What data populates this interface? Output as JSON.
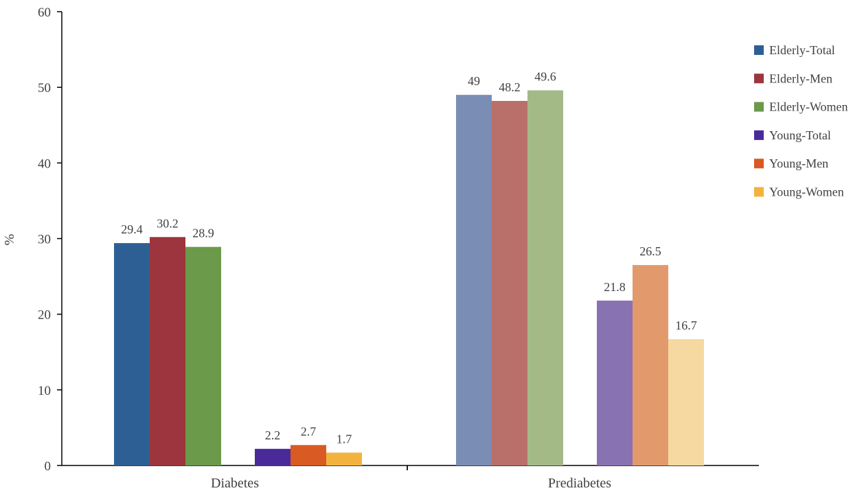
{
  "chart_data": {
    "type": "bar",
    "categories": [
      "Diabetes",
      "Prediabetes"
    ],
    "series": [
      {
        "name": "Elderly-Total",
        "values": [
          29.4,
          49
        ]
      },
      {
        "name": "Elderly-Men",
        "values": [
          30.2,
          48.2
        ]
      },
      {
        "name": "Elderly-Women",
        "values": [
          28.9,
          49.6
        ]
      },
      {
        "name": "Young-Total",
        "values": [
          2.2,
          21.8
        ]
      },
      {
        "name": "Young-Men",
        "values": [
          2.7,
          26.5
        ]
      },
      {
        "name": "Young-Women",
        "values": [
          1.7,
          16.7
        ]
      }
    ],
    "data_labels": [
      [
        "29.4",
        "30.2",
        "28.9",
        "2.2",
        "2.7",
        "1.7"
      ],
      [
        "49",
        "48.2",
        "49.6",
        "21.8",
        "26.5",
        "16.7"
      ]
    ],
    "colors": {
      "Diabetes": [
        "#2e5f94",
        "#9c353d",
        "#6a9a4a",
        "#4a2a9a",
        "#d95a22",
        "#f2b33e"
      ],
      "Prediabetes": [
        "#7a8db5",
        "#b9706a",
        "#a3ba87",
        "#8872b2",
        "#e29a6d",
        "#f5d9a0"
      ]
    },
    "legend_colors": [
      "#2e5f94",
      "#9c353d",
      "#6a9a4a",
      "#4a2a9a",
      "#d95a22",
      "#f2b33e"
    ],
    "ylabel": "%",
    "xlabel": "",
    "title": "",
    "ylim": [
      0,
      60
    ],
    "yticks": [
      "0",
      "10",
      "20",
      "30",
      "40",
      "50",
      "60"
    ],
    "legend_position": "right",
    "grid": false
  }
}
